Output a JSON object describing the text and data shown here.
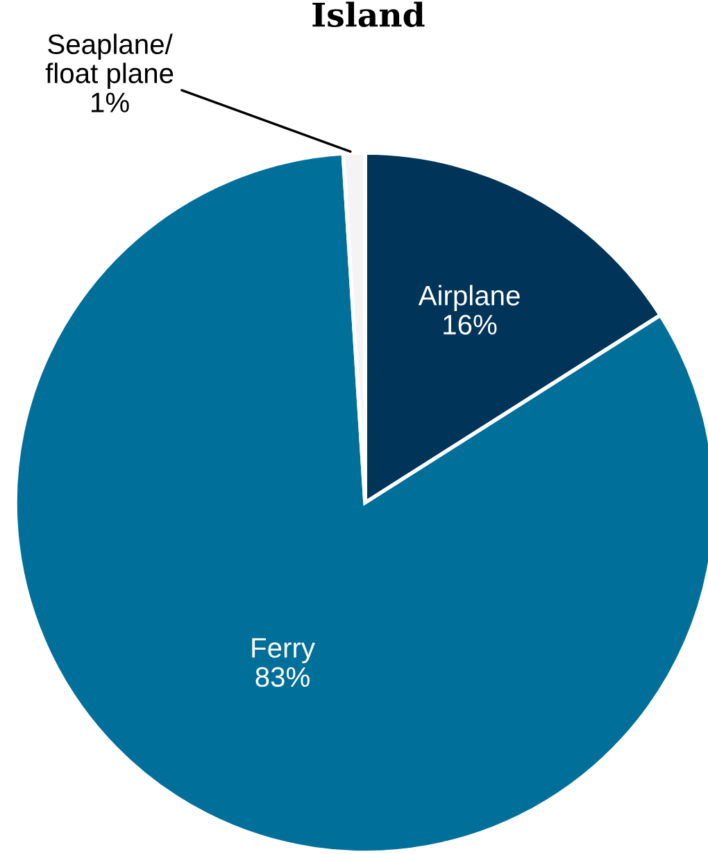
{
  "chart_data": {
    "type": "pie",
    "title": "Island",
    "categories": [
      "Airplane",
      "Ferry",
      "Seaplane/\nfloat plane"
    ],
    "values": [
      16,
      83,
      1
    ],
    "colors": [
      "#003459",
      "#006f9a",
      "#f4f4f4"
    ],
    "value_labels": [
      "16%",
      "83%",
      "1%"
    ]
  }
}
